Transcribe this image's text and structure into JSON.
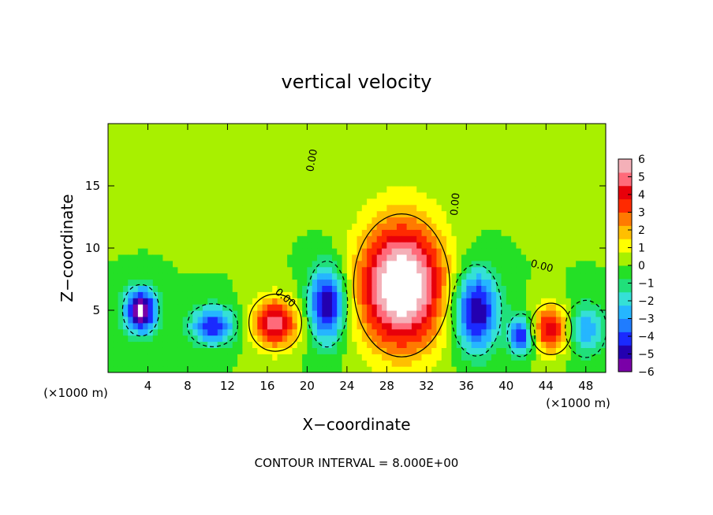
{
  "chart_data": {
    "type": "heatmap",
    "title": "vertical velocity",
    "xlabel": "X−coordinate",
    "ylabel": "Z−coordinate",
    "x_unit": "(×1000 m)",
    "y_unit": "(×1000 m)",
    "xlim": [
      0,
      50
    ],
    "ylim": [
      0,
      20
    ],
    "x_ticks": [
      4,
      8,
      12,
      16,
      20,
      24,
      28,
      32,
      36,
      40,
      44,
      48
    ],
    "y_ticks": [
      5,
      10,
      15
    ],
    "colorbar": {
      "min": -6,
      "max": 6,
      "ticks": [
        6,
        5,
        4,
        3,
        2,
        1,
        0,
        -1,
        -2,
        -3,
        -4,
        -5,
        -6
      ],
      "tick_labels": [
        "6",
        "5",
        "4",
        "3",
        "2",
        "1",
        "0",
        "−1",
        "−2",
        "−3",
        "−4",
        "−5",
        "−6"
      ],
      "colors": [
        "#7a00a8",
        "#2300b0",
        "#1a2aff",
        "#1f7cff",
        "#25b6ff",
        "#35e0d6",
        "#20e07a",
        "#24e026",
        "#a8f000",
        "#ffff00",
        "#ffbf00",
        "#ff7a00",
        "#ff2a00",
        "#e8000a",
        "#ff6a7a",
        "#f4b0b8"
      ]
    },
    "cells": [
      {
        "x": 29.5,
        "z": 7.0,
        "value": 7.5,
        "sx": 4.2,
        "sz": 5.0
      },
      {
        "x": 3.3,
        "z": 5.0,
        "value": -6.5,
        "sx": 1.6,
        "sz": 1.8
      },
      {
        "x": 10.5,
        "z": 3.8,
        "value": -4.5,
        "sx": 2.2,
        "sz": 1.5
      },
      {
        "x": 16.8,
        "z": 4.0,
        "value": 5.0,
        "sx": 2.3,
        "sz": 2.0
      },
      {
        "x": 22.0,
        "z": 5.5,
        "value": -5.5,
        "sx": 1.8,
        "sz": 3.0
      },
      {
        "x": 37.0,
        "z": 5.0,
        "value": -5.5,
        "sx": 2.2,
        "sz": 3.2
      },
      {
        "x": 41.5,
        "z": 3.0,
        "value": -4.5,
        "sx": 1.2,
        "sz": 1.5
      },
      {
        "x": 44.5,
        "z": 3.5,
        "value": 4.5,
        "sx": 1.8,
        "sz": 1.8
      },
      {
        "x": 48.0,
        "z": 3.5,
        "value": -3.0,
        "sx": 1.8,
        "sz": 2.0
      }
    ],
    "contour_labels": [
      {
        "text": "0.00",
        "x": 20.8,
        "z": 17.0,
        "rotate": -80
      },
      {
        "text": "0.00",
        "x": 17.6,
        "z": 5.8,
        "rotate": 40
      },
      {
        "text": "0.00",
        "x": 35.2,
        "z": 13.5,
        "rotate": -85
      },
      {
        "text": "0.00",
        "x": 43.5,
        "z": 8.3,
        "rotate": 15
      }
    ],
    "annotation": "CONTOUR INTERVAL = 8.000E+00"
  }
}
